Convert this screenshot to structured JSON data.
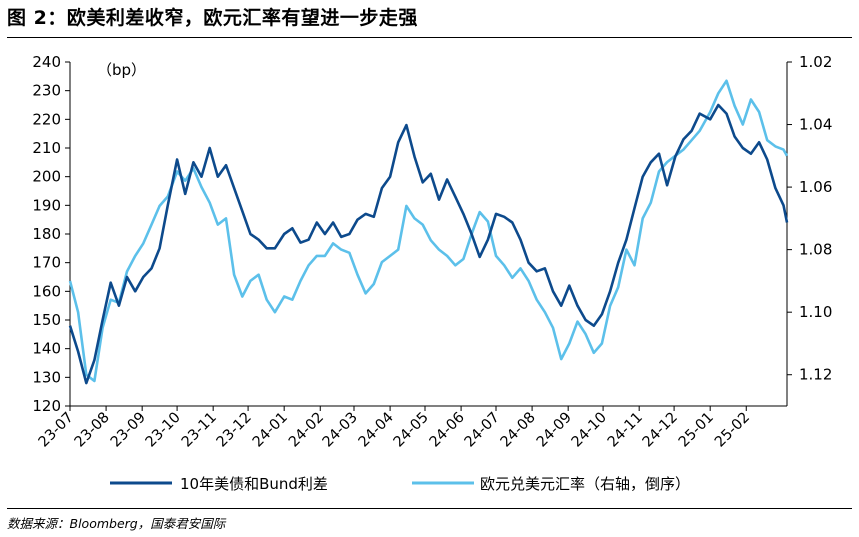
{
  "figure": {
    "title": "图 2：欧美利差收窄，欧元汇率有望进一步走强",
    "source": "数据来源：Bloomberg，国泰君安国际"
  },
  "colors": {
    "spread": "#0d4a8c",
    "eurusd": "#5cc0ea"
  },
  "chart_data": {
    "type": "line",
    "y_unit_label": "（bp）",
    "x_tick_labels": [
      "23-07",
      "23-08",
      "23-09",
      "23-10",
      "23-11",
      "23-12",
      "24-01",
      "24-02",
      "24-03",
      "24-04",
      "24-05",
      "24-06",
      "24-07",
      "24-08",
      "24-09",
      "24-10",
      "24-11",
      "24-12",
      "25-01",
      "25-02"
    ],
    "x_range": [
      "2023-07-01",
      "2025-03-08"
    ],
    "y_left": {
      "range": [
        120,
        240
      ],
      "ticks": [
        120,
        130,
        140,
        150,
        160,
        170,
        180,
        190,
        200,
        210,
        220,
        230,
        240
      ]
    },
    "y_right": {
      "range": [
        1.02,
        1.13
      ],
      "inverted": true,
      "ticks": [
        "1.02",
        "1.04",
        "1.06",
        "1.08",
        "1.10",
        "1.12"
      ]
    },
    "series": [
      {
        "name": "10年美债和Bund利差",
        "axis": "left",
        "points": [
          [
            "2023-07-01",
            148
          ],
          [
            "2023-07-08",
            139
          ],
          [
            "2023-07-15",
            128
          ],
          [
            "2023-07-22",
            136
          ],
          [
            "2023-07-29",
            150
          ],
          [
            "2023-08-05",
            163
          ],
          [
            "2023-08-12",
            155
          ],
          [
            "2023-08-19",
            165
          ],
          [
            "2023-08-26",
            160
          ],
          [
            "2023-09-02",
            165
          ],
          [
            "2023-09-09",
            168
          ],
          [
            "2023-09-16",
            175
          ],
          [
            "2023-09-23",
            190
          ],
          [
            "2023-10-01",
            206
          ],
          [
            "2023-10-08",
            194
          ],
          [
            "2023-10-15",
            205
          ],
          [
            "2023-10-22",
            200
          ],
          [
            "2023-10-29",
            210
          ],
          [
            "2023-11-05",
            200
          ],
          [
            "2023-11-12",
            204
          ],
          [
            "2023-11-19",
            196
          ],
          [
            "2023-11-26",
            188
          ],
          [
            "2023-12-03",
            180
          ],
          [
            "2023-12-10",
            178
          ],
          [
            "2023-12-17",
            175
          ],
          [
            "2023-12-24",
            175
          ],
          [
            "2024-01-01",
            180
          ],
          [
            "2024-01-08",
            182
          ],
          [
            "2024-01-15",
            177
          ],
          [
            "2024-01-22",
            178
          ],
          [
            "2024-01-29",
            184
          ],
          [
            "2024-02-05",
            180
          ],
          [
            "2024-02-12",
            184
          ],
          [
            "2024-02-19",
            179
          ],
          [
            "2024-02-26",
            180
          ],
          [
            "2024-03-04",
            185
          ],
          [
            "2024-03-11",
            187
          ],
          [
            "2024-03-18",
            186
          ],
          [
            "2024-03-25",
            196
          ],
          [
            "2024-04-01",
            200
          ],
          [
            "2024-04-08",
            212
          ],
          [
            "2024-04-15",
            218
          ],
          [
            "2024-04-22",
            207
          ],
          [
            "2024-04-29",
            198
          ],
          [
            "2024-05-06",
            201
          ],
          [
            "2024-05-13",
            192
          ],
          [
            "2024-05-20",
            199
          ],
          [
            "2024-05-27",
            193
          ],
          [
            "2024-06-03",
            187
          ],
          [
            "2024-06-10",
            180
          ],
          [
            "2024-06-17",
            172
          ],
          [
            "2024-06-24",
            178
          ],
          [
            "2024-07-01",
            187
          ],
          [
            "2024-07-08",
            186
          ],
          [
            "2024-07-15",
            184
          ],
          [
            "2024-07-22",
            178
          ],
          [
            "2024-07-29",
            170
          ],
          [
            "2024-08-05",
            167
          ],
          [
            "2024-08-12",
            168
          ],
          [
            "2024-08-19",
            160
          ],
          [
            "2024-08-26",
            155
          ],
          [
            "2024-09-02",
            162
          ],
          [
            "2024-09-09",
            155
          ],
          [
            "2024-09-16",
            150
          ],
          [
            "2024-09-23",
            148
          ],
          [
            "2024-09-30",
            152
          ],
          [
            "2024-10-07",
            160
          ],
          [
            "2024-10-14",
            170
          ],
          [
            "2024-10-21",
            178
          ],
          [
            "2024-10-28",
            189
          ],
          [
            "2024-11-04",
            200
          ],
          [
            "2024-11-11",
            205
          ],
          [
            "2024-11-18",
            208
          ],
          [
            "2024-11-25",
            197
          ],
          [
            "2024-12-02",
            207
          ],
          [
            "2024-12-09",
            213
          ],
          [
            "2024-12-16",
            216
          ],
          [
            "2024-12-23",
            222
          ],
          [
            "2025-01-01",
            220
          ],
          [
            "2025-01-08",
            225
          ],
          [
            "2025-01-15",
            222
          ],
          [
            "2025-01-22",
            214
          ],
          [
            "2025-01-29",
            210
          ],
          [
            "2025-02-05",
            208
          ],
          [
            "2025-02-12",
            212
          ],
          [
            "2025-02-19",
            206
          ],
          [
            "2025-02-26",
            196
          ],
          [
            "2025-03-05",
            190
          ],
          [
            "2025-03-08",
            184
          ]
        ]
      },
      {
        "name": "欧元兑美元汇率（右轴，倒序）",
        "axis": "right",
        "points": [
          [
            "2023-07-01",
            1.09
          ],
          [
            "2023-07-08",
            1.1
          ],
          [
            "2023-07-15",
            1.12
          ],
          [
            "2023-07-22",
            1.122
          ],
          [
            "2023-07-29",
            1.105
          ],
          [
            "2023-08-05",
            1.096
          ],
          [
            "2023-08-12",
            1.097
          ],
          [
            "2023-08-19",
            1.087
          ],
          [
            "2023-08-26",
            1.082
          ],
          [
            "2023-09-02",
            1.078
          ],
          [
            "2023-09-09",
            1.072
          ],
          [
            "2023-09-16",
            1.066
          ],
          [
            "2023-09-23",
            1.063
          ],
          [
            "2023-10-01",
            1.055
          ],
          [
            "2023-10-08",
            1.058
          ],
          [
            "2023-10-15",
            1.054
          ],
          [
            "2023-10-22",
            1.06
          ],
          [
            "2023-10-29",
            1.065
          ],
          [
            "2023-11-05",
            1.072
          ],
          [
            "2023-11-12",
            1.07
          ],
          [
            "2023-11-19",
            1.088
          ],
          [
            "2023-11-26",
            1.095
          ],
          [
            "2023-12-03",
            1.09
          ],
          [
            "2023-12-10",
            1.088
          ],
          [
            "2023-12-17",
            1.096
          ],
          [
            "2023-12-24",
            1.1
          ],
          [
            "2024-01-01",
            1.095
          ],
          [
            "2024-01-08",
            1.096
          ],
          [
            "2024-01-15",
            1.09
          ],
          [
            "2024-01-22",
            1.085
          ],
          [
            "2024-01-29",
            1.082
          ],
          [
            "2024-02-05",
            1.082
          ],
          [
            "2024-02-12",
            1.078
          ],
          [
            "2024-02-19",
            1.08
          ],
          [
            "2024-02-26",
            1.081
          ],
          [
            "2024-03-04",
            1.088
          ],
          [
            "2024-03-11",
            1.094
          ],
          [
            "2024-03-18",
            1.091
          ],
          [
            "2024-03-25",
            1.084
          ],
          [
            "2024-04-01",
            1.082
          ],
          [
            "2024-04-08",
            1.08
          ],
          [
            "2024-04-15",
            1.066
          ],
          [
            "2024-04-22",
            1.07
          ],
          [
            "2024-04-29",
            1.072
          ],
          [
            "2024-05-06",
            1.077
          ],
          [
            "2024-05-13",
            1.08
          ],
          [
            "2024-05-20",
            1.082
          ],
          [
            "2024-05-27",
            1.085
          ],
          [
            "2024-06-03",
            1.083
          ],
          [
            "2024-06-10",
            1.075
          ],
          [
            "2024-06-17",
            1.068
          ],
          [
            "2024-06-24",
            1.071
          ],
          [
            "2024-07-01",
            1.082
          ],
          [
            "2024-07-08",
            1.085
          ],
          [
            "2024-07-15",
            1.089
          ],
          [
            "2024-07-22",
            1.086
          ],
          [
            "2024-07-29",
            1.09
          ],
          [
            "2024-08-05",
            1.096
          ],
          [
            "2024-08-12",
            1.1
          ],
          [
            "2024-08-19",
            1.105
          ],
          [
            "2024-08-26",
            1.115
          ],
          [
            "2024-09-02",
            1.11
          ],
          [
            "2024-09-09",
            1.103
          ],
          [
            "2024-09-16",
            1.107
          ],
          [
            "2024-09-23",
            1.113
          ],
          [
            "2024-09-30",
            1.11
          ],
          [
            "2024-10-07",
            1.098
          ],
          [
            "2024-10-14",
            1.092
          ],
          [
            "2024-10-21",
            1.08
          ],
          [
            "2024-10-28",
            1.085
          ],
          [
            "2024-11-04",
            1.07
          ],
          [
            "2024-11-11",
            1.065
          ],
          [
            "2024-11-18",
            1.055
          ],
          [
            "2024-11-25",
            1.052
          ],
          [
            "2024-12-02",
            1.05
          ],
          [
            "2024-12-09",
            1.048
          ],
          [
            "2024-12-16",
            1.045
          ],
          [
            "2024-12-23",
            1.042
          ],
          [
            "2025-01-01",
            1.036
          ],
          [
            "2025-01-08",
            1.03
          ],
          [
            "2025-01-15",
            1.026
          ],
          [
            "2025-01-22",
            1.034
          ],
          [
            "2025-01-29",
            1.04
          ],
          [
            "2025-02-05",
            1.032
          ],
          [
            "2025-02-12",
            1.036
          ],
          [
            "2025-02-19",
            1.045
          ],
          [
            "2025-02-26",
            1.047
          ],
          [
            "2025-03-05",
            1.048
          ],
          [
            "2025-03-08",
            1.05
          ]
        ]
      }
    ]
  }
}
